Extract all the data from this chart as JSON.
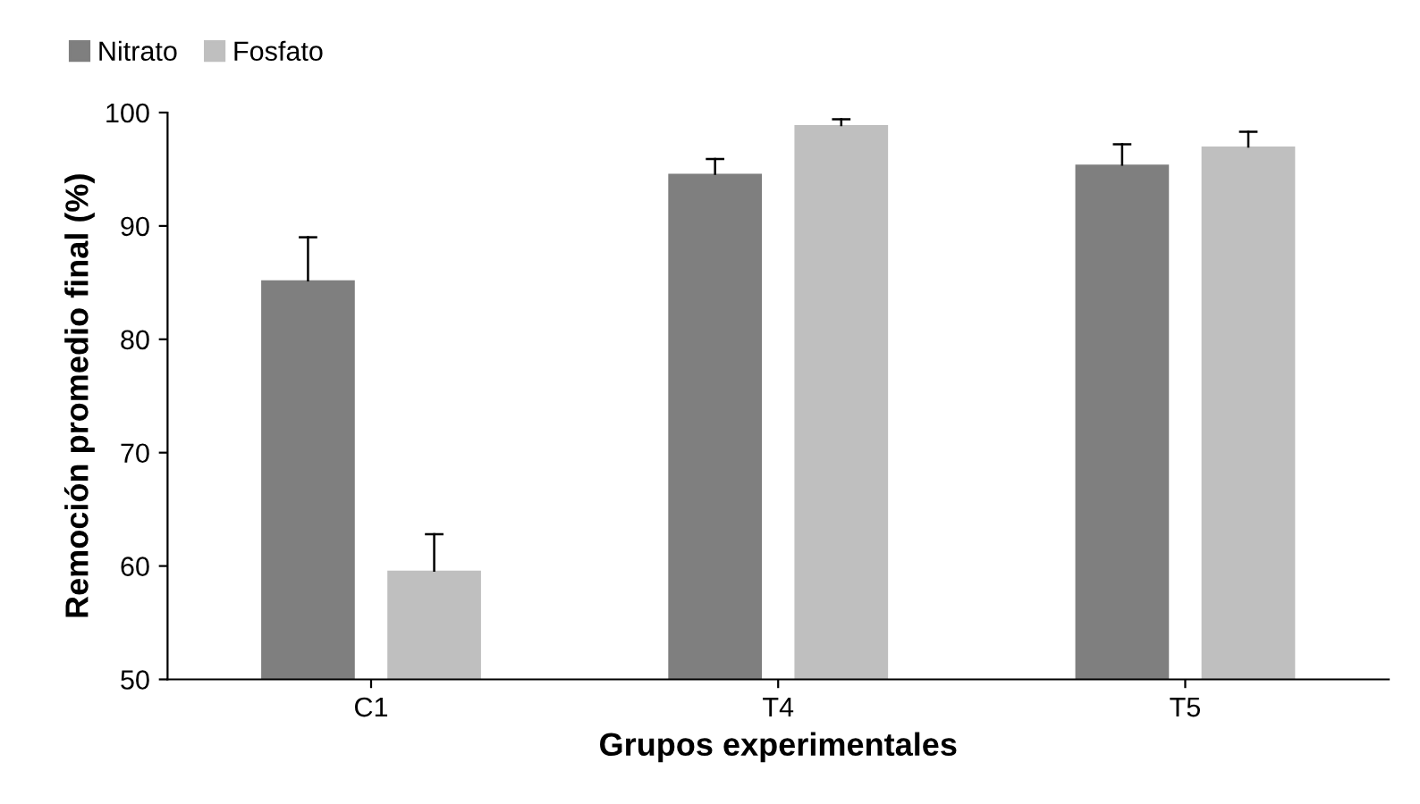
{
  "chart_data": {
    "type": "bar",
    "xlabel": "Grupos experimentales",
    "ylabel": "Remoción promedio final (%)",
    "categories": [
      "C1",
      "T4",
      "T5"
    ],
    "series": [
      {
        "name": "Nitrato",
        "color": "#7f7f7f",
        "values": [
          85.2,
          94.6,
          95.4
        ],
        "errors": [
          [
            85.2,
            89.0
          ],
          [
            94.6,
            95.9
          ],
          [
            95.4,
            97.2
          ]
        ]
      },
      {
        "name": "Fosfato",
        "color": "#bfbfbf",
        "values": [
          59.6,
          98.9,
          97.0
        ],
        "errors": [
          [
            59.6,
            62.8
          ],
          [
            98.9,
            99.4
          ],
          [
            97.0,
            98.3
          ]
        ]
      }
    ],
    "ylim": [
      50,
      100
    ],
    "yticks": [
      50,
      60,
      70,
      80,
      90,
      100
    ],
    "grid": false,
    "legend": "top left"
  }
}
